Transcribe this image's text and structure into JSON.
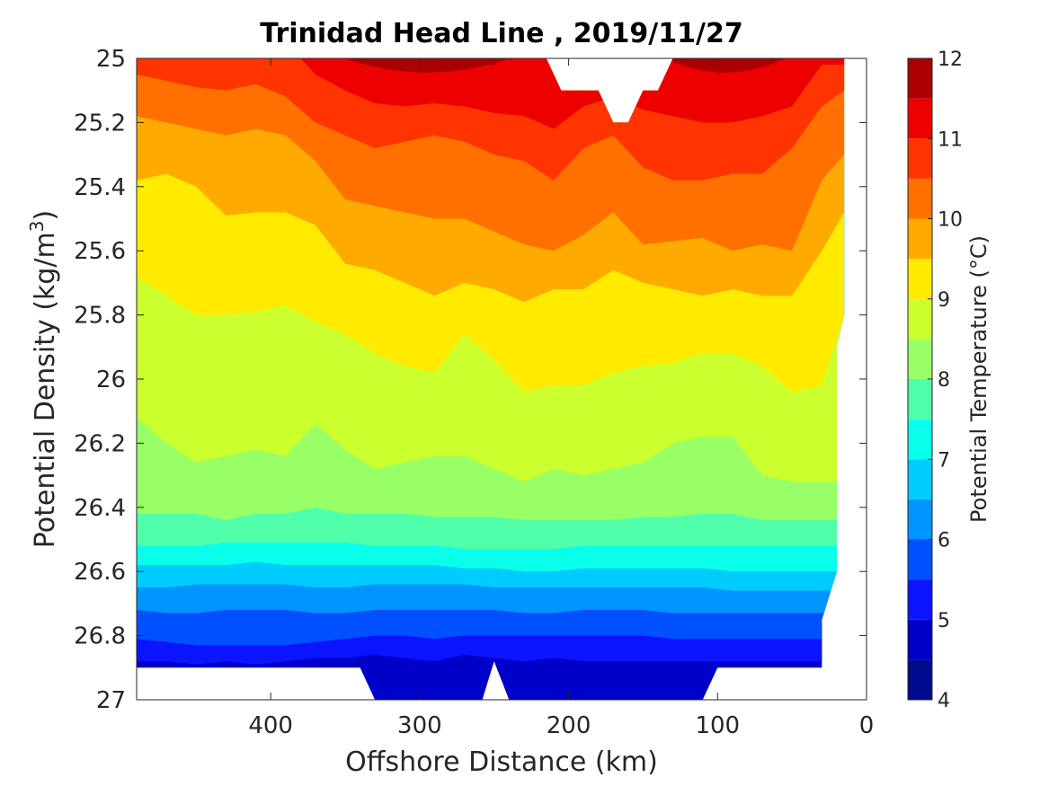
{
  "chart_data": {
    "type": "heatmap",
    "subtype": "filled-contour",
    "title": "Trinidad Head Line , 2019/11/27",
    "xlabel": "Offshore Distance (km)",
    "ylabel_main": "Potential Density (kg/m",
    "ylabel_sup": "3",
    "ylabel_close": ")",
    "xlim": [
      490,
      0
    ],
    "x_reversed": true,
    "ylim": [
      25,
      27
    ],
    "y_reversed": true,
    "x_ticks": [
      400,
      300,
      200,
      100,
      0
    ],
    "x_tick_labels": [
      "400",
      "300",
      "200",
      "100",
      "0"
    ],
    "y_ticks": [
      25,
      25.2,
      25.4,
      25.6,
      25.8,
      26,
      26.2,
      26.4,
      26.6,
      26.8,
      27
    ],
    "y_tick_labels": [
      "25",
      "25.2",
      "25.4",
      "25.6",
      "25.8",
      "26",
      "26.2",
      "26.4",
      "26.6",
      "26.8",
      "27"
    ],
    "colorbar": {
      "label": "Potential Temperature (°C)",
      "range": [
        4,
        12
      ],
      "tick_values": [
        4,
        5,
        6,
        7,
        8,
        9,
        10,
        11,
        12
      ],
      "tick_labels": [
        "4",
        "5",
        "6",
        "7",
        "8",
        "9",
        "10",
        "11",
        "12"
      ],
      "levels": [
        {
          "from": 4.0,
          "to": 4.5,
          "color": "#000a8c"
        },
        {
          "from": 4.5,
          "to": 5.0,
          "color": "#0000c8"
        },
        {
          "from": 5.0,
          "to": 5.5,
          "color": "#0a14ff"
        },
        {
          "from": 5.5,
          "to": 6.0,
          "color": "#0050ff"
        },
        {
          "from": 6.0,
          "to": 6.5,
          "color": "#0094ff"
        },
        {
          "from": 6.5,
          "to": 7.0,
          "color": "#00ccff"
        },
        {
          "from": 7.0,
          "to": 7.5,
          "color": "#0affea"
        },
        {
          "from": 7.5,
          "to": 8.0,
          "color": "#50ffaa"
        },
        {
          "from": 8.0,
          "to": 8.5,
          "color": "#98ff66"
        },
        {
          "from": 8.5,
          "to": 9.0,
          "color": "#ccff2e"
        },
        {
          "from": 9.0,
          "to": 9.5,
          "color": "#ffea00"
        },
        {
          "from": 9.5,
          "to": 10.0,
          "color": "#ffaa00"
        },
        {
          "from": 10.0,
          "to": 10.5,
          "color": "#ff7000"
        },
        {
          "from": 10.5,
          "to": 11.0,
          "color": "#ff3400"
        },
        {
          "from": 11.0,
          "to": 11.5,
          "color": "#ec0000"
        },
        {
          "from": 11.5,
          "to": 12.0,
          "color": "#aa0000"
        }
      ]
    },
    "contour_boundaries": {
      "x": [
        490,
        470,
        450,
        430,
        410,
        390,
        370,
        350,
        330,
        310,
        290,
        270,
        250,
        230,
        210,
        190,
        170,
        150,
        130,
        110,
        90,
        70,
        50,
        30,
        15
      ],
      "y_at_temp": [
        {
          "temp": 11.5,
          "y": [
            24.95,
            24.95,
            24.95,
            24.95,
            24.95,
            24.95,
            24.95,
            24.95,
            24.95,
            25.0,
            25.02,
            25.02,
            25.02,
            24.95,
            24.95,
            24.95,
            24.95,
            24.95,
            25.0,
            25.0,
            25.01,
            25.02,
            24.95,
            24.95,
            24.95
          ]
        },
        {
          "temp": 11.0,
          "y": [
            24.95,
            24.95,
            24.95,
            24.95,
            24.95,
            24.95,
            25.05,
            25.1,
            25.14,
            25.15,
            25.14,
            25.15,
            25.17,
            25.18,
            25.22,
            25.15,
            25.12,
            25.16,
            25.18,
            25.2,
            25.2,
            25.18,
            25.15,
            25.02,
            25.02
          ]
        },
        {
          "temp": 10.5,
          "y": [
            25.05,
            25.07,
            25.09,
            25.1,
            25.08,
            25.12,
            25.2,
            25.24,
            25.28,
            25.26,
            25.24,
            25.26,
            25.3,
            25.32,
            25.38,
            25.28,
            25.24,
            25.34,
            25.38,
            25.38,
            25.36,
            25.36,
            25.28,
            25.15,
            25.1
          ]
        },
        {
          "temp": 10.0,
          "y": [
            25.18,
            25.2,
            25.22,
            25.24,
            25.22,
            25.24,
            25.32,
            25.44,
            25.46,
            25.48,
            25.5,
            25.5,
            25.54,
            25.58,
            25.6,
            25.55,
            25.48,
            25.58,
            25.57,
            25.56,
            25.6,
            25.58,
            25.6,
            25.38,
            25.3
          ]
        },
        {
          "temp": 9.5,
          "y": [
            25.38,
            25.36,
            25.4,
            25.49,
            25.48,
            25.48,
            25.52,
            25.64,
            25.66,
            25.7,
            25.74,
            25.7,
            25.72,
            25.76,
            25.72,
            25.72,
            25.66,
            25.7,
            25.72,
            25.74,
            25.72,
            25.74,
            25.74,
            25.6,
            25.48
          ]
        },
        {
          "temp": 9.0,
          "y": [
            25.68,
            25.74,
            25.8,
            25.8,
            25.79,
            25.77,
            25.82,
            25.86,
            25.92,
            25.96,
            25.98,
            25.86,
            25.94,
            26.04,
            26.02,
            26.02,
            25.98,
            25.96,
            25.95,
            25.92,
            25.92,
            25.96,
            26.04,
            26.02,
            25.8
          ]
        },
        {
          "temp": 8.5,
          "y": [
            26.12,
            26.2,
            26.26,
            26.24,
            26.22,
            26.24,
            26.14,
            26.22,
            26.28,
            26.26,
            26.24,
            26.24,
            26.28,
            26.32,
            26.28,
            26.3,
            26.28,
            26.26,
            26.2,
            26.18,
            26.18,
            26.3,
            26.32,
            26.32,
            26.32
          ]
        },
        {
          "temp": 8.0,
          "y": [
            26.42,
            26.42,
            26.42,
            26.44,
            26.42,
            26.42,
            26.4,
            26.42,
            26.42,
            26.42,
            26.43,
            26.43,
            26.43,
            26.44,
            26.44,
            26.44,
            26.44,
            26.43,
            26.43,
            26.42,
            26.42,
            26.44,
            26.44,
            26.44,
            26.44
          ]
        },
        {
          "temp": 7.5,
          "y": [
            26.52,
            26.52,
            26.52,
            26.51,
            26.51,
            26.51,
            26.51,
            26.51,
            26.52,
            26.52,
            26.52,
            26.53,
            26.53,
            26.53,
            26.53,
            26.52,
            26.52,
            26.52,
            26.52,
            26.52,
            26.52,
            26.52,
            26.52,
            26.52,
            26.52
          ]
        },
        {
          "temp": 7.0,
          "y": [
            26.58,
            26.58,
            26.58,
            26.58,
            26.57,
            26.58,
            26.58,
            26.58,
            26.58,
            26.58,
            26.58,
            26.59,
            26.59,
            26.6,
            26.6,
            26.59,
            26.59,
            26.59,
            26.59,
            26.59,
            26.6,
            26.6,
            26.6,
            26.6,
            26.6
          ]
        },
        {
          "temp": 6.5,
          "y": [
            26.65,
            26.65,
            26.64,
            26.64,
            26.64,
            26.64,
            26.65,
            26.65,
            26.64,
            26.64,
            26.64,
            26.64,
            26.65,
            26.65,
            26.65,
            26.65,
            26.65,
            26.65,
            26.65,
            26.65,
            26.66,
            26.66,
            26.66,
            26.66,
            26.66
          ]
        },
        {
          "temp": 6.0,
          "y": [
            26.72,
            26.73,
            26.73,
            26.72,
            26.72,
            26.72,
            26.73,
            26.73,
            26.72,
            26.72,
            26.72,
            26.72,
            26.72,
            26.73,
            26.73,
            26.72,
            26.72,
            26.72,
            26.73,
            26.73,
            26.73,
            26.73,
            26.73,
            26.73,
            26.73
          ]
        },
        {
          "temp": 5.5,
          "y": [
            26.81,
            26.82,
            26.83,
            26.83,
            26.83,
            26.83,
            26.82,
            26.81,
            26.8,
            26.8,
            26.81,
            26.8,
            26.8,
            26.8,
            26.8,
            26.8,
            26.8,
            26.8,
            26.81,
            26.81,
            26.81,
            26.81,
            26.81,
            26.81,
            26.81
          ]
        },
        {
          "temp": 5.0,
          "y": [
            26.88,
            26.88,
            26.89,
            26.88,
            26.89,
            26.88,
            26.87,
            26.87,
            26.86,
            26.87,
            26.88,
            26.86,
            26.87,
            26.88,
            26.87,
            26.88,
            26.88,
            26.88,
            26.88,
            26.88,
            26.88,
            26.88,
            26.88,
            26.88,
            26.88
          ]
        }
      ],
      "top_gap": {
        "x": [
          155,
          148,
          143,
          137,
          125,
          118,
          110
        ],
        "y": [
          24.95,
          25.0,
          25.1,
          25.2,
          25.2,
          25.1,
          24.95
        ],
        "x_offset_note": "km"
      },
      "data_mask": {
        "top_notch_km": [
          [
            215,
            25.0
          ],
          [
            205,
            25.1
          ],
          [
            180,
            25.1
          ],
          [
            170,
            25.2
          ],
          [
            160,
            25.2
          ],
          [
            150,
            25.1
          ],
          [
            140,
            25.1
          ],
          [
            130,
            25.0
          ]
        ],
        "right_edge_km": [
          [
            15,
            25.0
          ],
          [
            15,
            25.8
          ],
          [
            20,
            25.9
          ],
          [
            20,
            26.6
          ],
          [
            30,
            26.75
          ],
          [
            30,
            26.9
          ]
        ],
        "bottom_edge_km": [
          [
            490,
            26.9
          ],
          [
            340,
            26.9
          ],
          [
            330,
            27.0
          ],
          [
            258,
            27.0
          ],
          [
            250,
            26.88
          ],
          [
            240,
            27.0
          ],
          [
            110,
            27.0
          ],
          [
            100,
            26.9
          ],
          [
            30,
            26.9
          ]
        ]
      }
    }
  }
}
